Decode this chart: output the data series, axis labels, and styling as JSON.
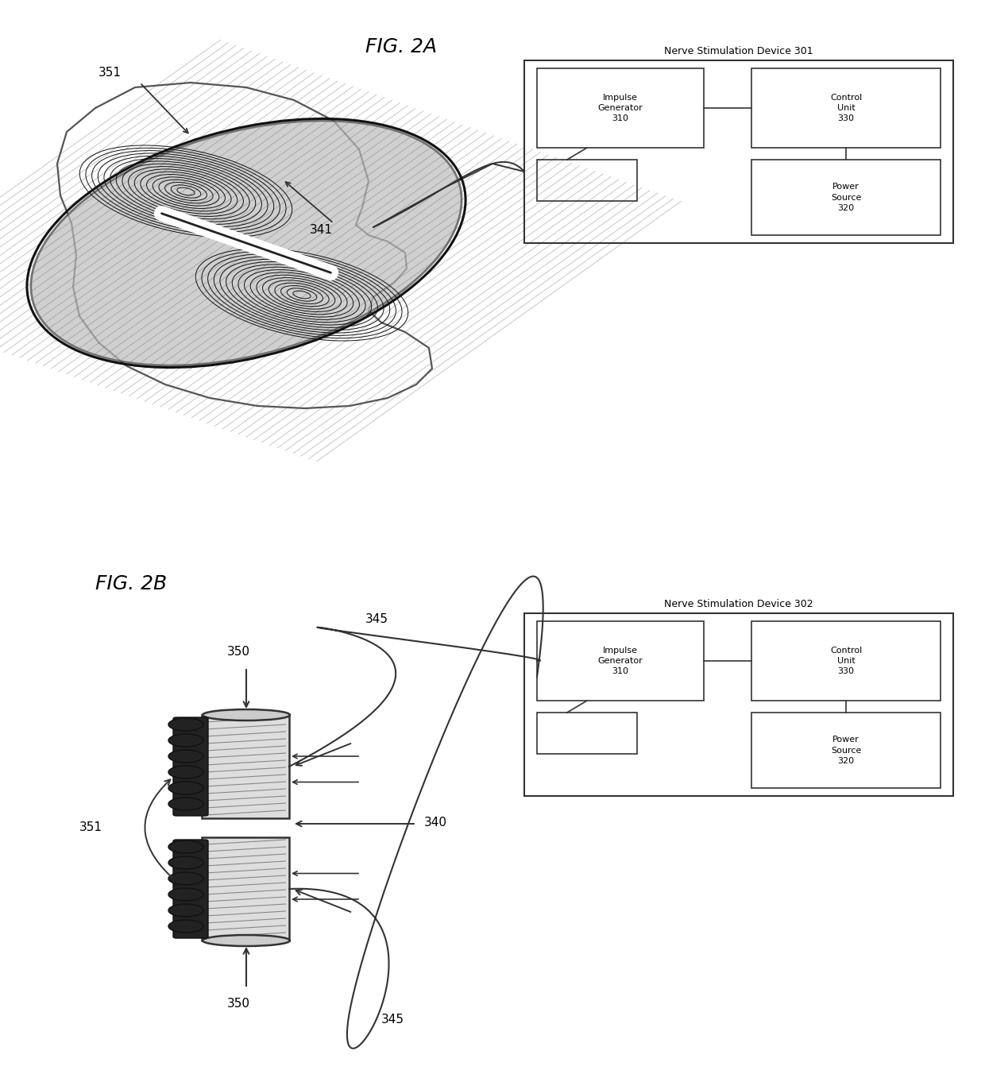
{
  "fig_width": 12.4,
  "fig_height": 13.52,
  "bg_color": "#ffffff",
  "text_color": "#000000",
  "line_color": "#333333",
  "box_color": "#333333",
  "fig2a_label": "FIG. 2A",
  "fig2b_label": "FIG. 2B",
  "nsd301_title": "Nerve Stimulation Device 301",
  "nsd302_title": "Nerve Stimulation Device 302",
  "impulse_label": "Impulse\nGenerator\n310",
  "control_label": "Control\nUnit\n330",
  "power_label": "Power\nSource\n320",
  "lbl_351a": "351",
  "lbl_341": "341",
  "lbl_350t": "350",
  "lbl_350b": "350",
  "lbl_351b": "351",
  "lbl_340": "340",
  "lbl_345t": "345",
  "lbl_345b": "345"
}
